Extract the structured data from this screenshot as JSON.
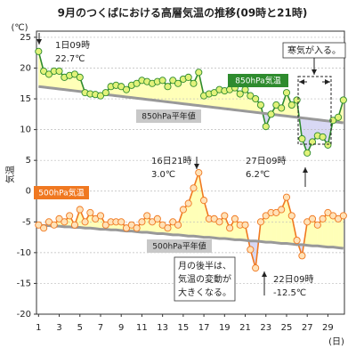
{
  "chart_data": {
    "type": "line",
    "title": "9月のつくばにおける高層気温の推移(09時と21時)",
    "y_unit": "(℃)",
    "ylabel": "気温",
    "x_unit": "(日)",
    "x": [
      1,
      1.5,
      2,
      2.5,
      3,
      3.5,
      4,
      4.5,
      5,
      5.5,
      6,
      6.5,
      7,
      7.5,
      8,
      8.5,
      9,
      9.5,
      10,
      10.5,
      11,
      11.5,
      12,
      12.5,
      13,
      13.5,
      14,
      14.5,
      15,
      15.5,
      16,
      16.5,
      17,
      17.5,
      18,
      18.5,
      19,
      19.5,
      20,
      20.5,
      21,
      21.5,
      22,
      22.5,
      23,
      23.5,
      24,
      24.5,
      25,
      25.5,
      26,
      26.5,
      27,
      27.5,
      28,
      28.5,
      29,
      29.5,
      30,
      30.5
    ],
    "xlim": [
      0.8,
      30.6
    ],
    "xticks": [
      1,
      3,
      5,
      7,
      9,
      11,
      13,
      15,
      17,
      19,
      21,
      23,
      25,
      27,
      29
    ],
    "ylim": [
      -20,
      26
    ],
    "yticks": [
      -20,
      -15,
      -10,
      -5,
      0,
      5,
      10,
      15,
      20,
      25
    ],
    "grid": true,
    "series": [
      {
        "name": "850hPa気温",
        "color": "#2e8b2e",
        "marker": "#e2f27a",
        "fill_above": "#ffffb8",
        "fill_below": "#d8d8f4",
        "normal": 1,
        "values": [
          22.7,
          19.5,
          19,
          19.5,
          19.5,
          18.5,
          18.8,
          19,
          18.5,
          16,
          15.8,
          15.7,
          15.5,
          16,
          17,
          17.2,
          17,
          16.5,
          17.2,
          17.5,
          18,
          17.8,
          17.5,
          17.8,
          18,
          17,
          18,
          17.5,
          18.2,
          18.5,
          17.5,
          19.3,
          15.5,
          15.8,
          16,
          16.5,
          16.3,
          16.5,
          16.8,
          15.8,
          16.5,
          15.5,
          15,
          14,
          10.5,
          12.5,
          14,
          13.5,
          16,
          14,
          14.8,
          8.5,
          6.2,
          8,
          9,
          8.8,
          7.5,
          11.5,
          12,
          14.8
        ]
      },
      {
        "name": "850hPa平年値",
        "color": "#999999",
        "values": [
          17,
          16.9,
          16.8,
          16.7,
          16.6,
          16.5,
          16.4,
          16.3,
          16.2,
          16.1,
          16,
          15.9,
          15.8,
          15.7,
          15.6,
          15.5,
          15.4,
          15.3,
          15.2,
          15.1,
          15,
          14.9,
          14.8,
          14.7,
          14.6,
          14.5,
          14.4,
          14.3,
          14.2,
          14.1,
          14,
          13.9,
          13.8,
          13.7,
          13.6,
          13.5,
          13.4,
          13.3,
          13.2,
          13.1,
          13,
          12.9,
          12.8,
          12.7,
          12.6,
          12.5,
          12.4,
          12.3,
          12.2,
          12.1,
          12,
          11.9,
          11.8,
          11.7,
          11.6,
          11.5,
          11.4,
          11.3,
          11.2,
          11.1
        ]
      },
      {
        "name": "500hPa気温",
        "color": "#f07820",
        "marker": "#ffe2b8",
        "fill_above": "#ffffb8",
        "fill_below": "#d8d8f4",
        "normal": 3,
        "values": [
          -5.5,
          -6,
          -5,
          -5.5,
          -4.5,
          -5,
          -4,
          -5.5,
          -3,
          -5,
          -3.5,
          -4.5,
          -4,
          -5.5,
          -5,
          -5,
          -5,
          -6,
          -5.5,
          -6,
          -5,
          -4,
          -5,
          -4.5,
          -5.5,
          -6,
          -5,
          -5.5,
          -3,
          -2,
          0.5,
          3.0,
          -1.5,
          -4.5,
          -4.5,
          -5,
          -4,
          -6,
          -4.5,
          -5.5,
          -5.5,
          -9.5,
          -12.5,
          -5,
          -4,
          -3.5,
          -3.5,
          -3,
          -1,
          -4,
          -8,
          -10.5,
          -5,
          -4.5,
          -5.5,
          -4.5,
          -3.5,
          -4,
          -4.5,
          -4
        ]
      },
      {
        "name": "500hPa平年値",
        "color": "#999999",
        "values": [
          -5.5,
          -5.6,
          -5.6,
          -5.7,
          -5.7,
          -5.8,
          -5.8,
          -5.9,
          -5.9,
          -6,
          -6,
          -6.1,
          -6.2,
          -6.2,
          -6.3,
          -6.3,
          -6.4,
          -6.5,
          -6.5,
          -6.6,
          -6.7,
          -6.7,
          -6.8,
          -6.9,
          -6.9,
          -7,
          -7.1,
          -7.1,
          -7.2,
          -7.3,
          -7.3,
          -7.4,
          -7.5,
          -7.5,
          -7.6,
          -7.7,
          -7.7,
          -7.8,
          -7.9,
          -7.9,
          -8,
          -8.1,
          -8.1,
          -8.2,
          -8.3,
          -8.3,
          -8.4,
          -8.5,
          -8.5,
          -8.6,
          -8.7,
          -8.7,
          -8.8,
          -8.9,
          -8.9,
          -9,
          -9.1,
          -9.1,
          -9.2,
          -9.3
        ]
      }
    ],
    "annotations": [
      {
        "lines": [
          "1日09時",
          "22.7℃"
        ]
      },
      {
        "lines": [
          "16日21時",
          "3.0℃"
        ]
      },
      {
        "lines": [
          "27日09時",
          "6.2℃"
        ]
      },
      {
        "lines": [
          "22日09時",
          "-12.5℃"
        ]
      },
      {
        "lines": [
          "寒気が入る。"
        ]
      },
      {
        "lines": [
          "月の後半は、",
          "気温の変動が",
          "大きくなる。"
        ]
      }
    ]
  }
}
